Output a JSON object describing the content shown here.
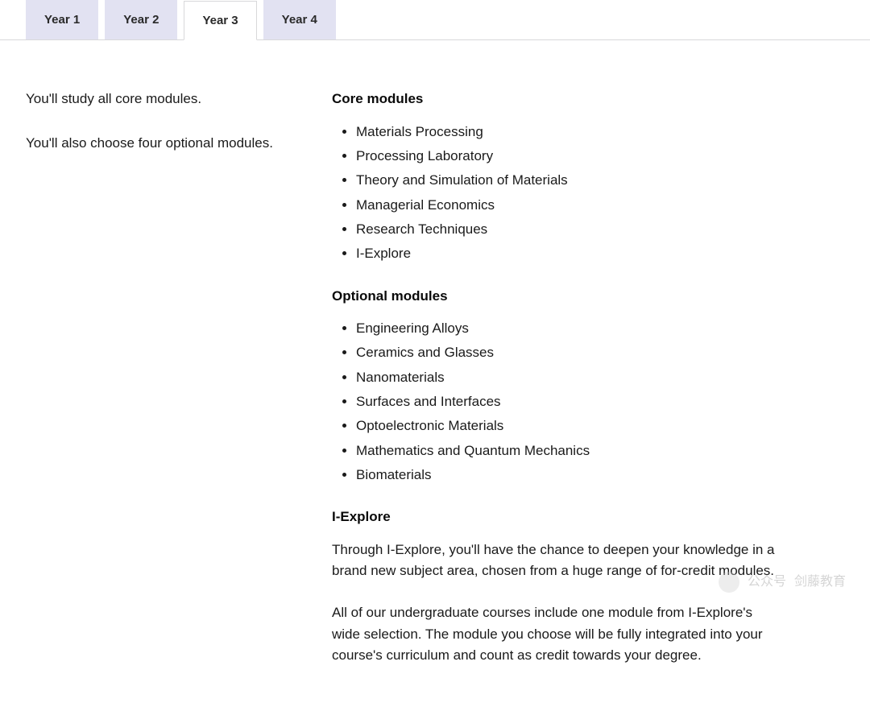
{
  "tabs": [
    {
      "label": "Year 1",
      "active": false
    },
    {
      "label": "Year 2",
      "active": false
    },
    {
      "label": "Year 3",
      "active": true
    },
    {
      "label": "Year 4",
      "active": false
    }
  ],
  "intro": {
    "para1": "You'll study all core modules.",
    "para2": "You'll also choose four optional modules."
  },
  "core_heading": "Core modules",
  "core_modules": [
    "Materials Processing",
    "Processing Laboratory",
    "Theory and Simulation of Materials",
    "Managerial Economics",
    "Research Techniques",
    "I-Explore"
  ],
  "optional_heading": "Optional modules",
  "optional_modules": [
    "Engineering Alloys",
    "Ceramics and Glasses",
    "Nanomaterials",
    "Surfaces and Interfaces",
    "Optoelectronic Materials",
    "Mathematics and Quantum Mechanics",
    "Biomaterials"
  ],
  "iexplore_heading": "I-Explore",
  "iexplore_para1": "Through I-Explore, you'll have the chance to deepen your knowledge in a brand new subject area, chosen from a huge range of for-credit modules.",
  "iexplore_para2": "All of our undergraduate courses include one module from I-Explore's wide selection. The module you choose will be fully integrated into your course's curriculum and count as credit towards your degree.",
  "watermark": {
    "label1": "公众号",
    "label2": "剑藤教育"
  },
  "colors": {
    "tab_inactive_bg": "#e2e2f2",
    "tab_active_bg": "#ffffff",
    "tab_border": "#d8d8da",
    "text_primary": "#1a1a1a",
    "text_heading": "#0a0a0a",
    "page_bg": "#ffffff"
  }
}
